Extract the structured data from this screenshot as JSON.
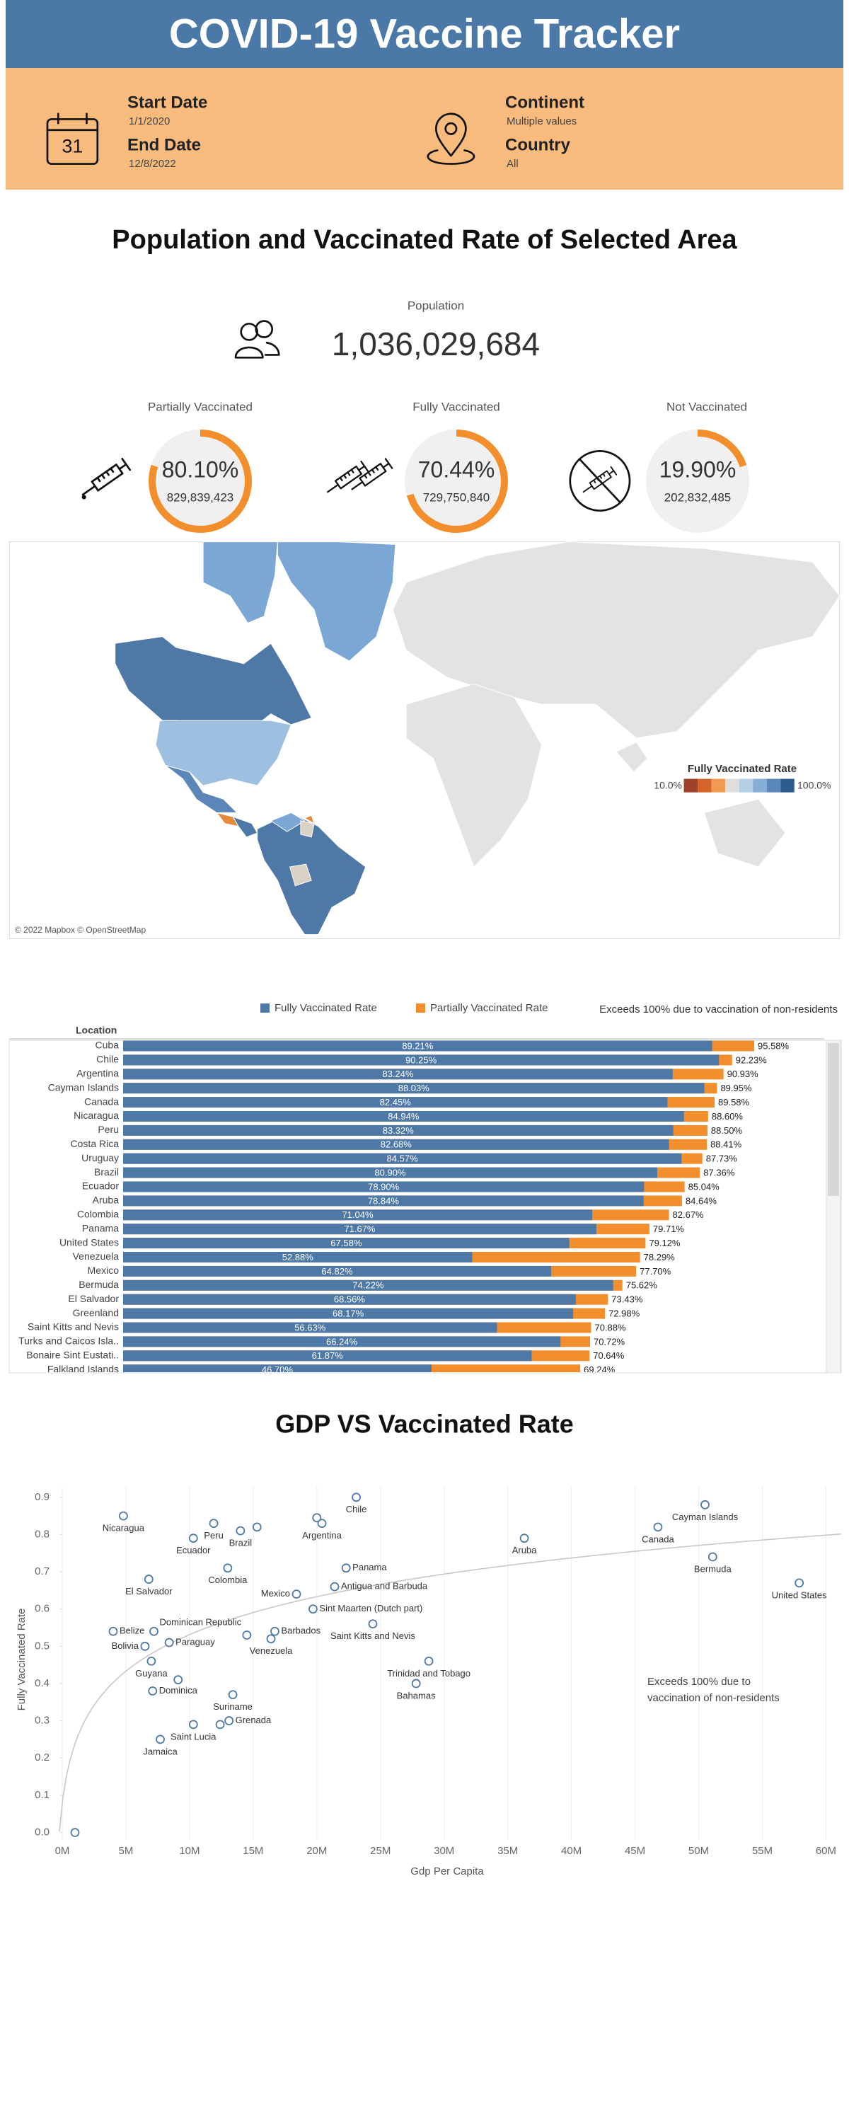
{
  "header": {
    "title": "COVID-19 Vaccine Tracker"
  },
  "filters": {
    "calendar_day": "31",
    "start_date": {
      "label": "Start Date",
      "value": "1/1/2020"
    },
    "end_date": {
      "label": "End Date",
      "value": "12/8/2022"
    },
    "continent": {
      "label": "Continent",
      "value": "Multiple values"
    },
    "country": {
      "label": "Country",
      "value": "All"
    }
  },
  "summary": {
    "title": "Population and Vaccinated Rate of Selected Area",
    "population": {
      "label": "Population",
      "value": "1,036,029,684"
    },
    "kpis": [
      {
        "label": "Partially Vaccinated",
        "value": 80.1,
        "value_label": "80.10%",
        "count": "829,839,423"
      },
      {
        "label": "Fully Vaccinated",
        "value": 70.44,
        "value_label": "70.44%",
        "count": "729,750,840"
      },
      {
        "label": "Not Vaccinated",
        "value": 19.9,
        "value_label": "19.90%",
        "count": "202,832,485"
      }
    ]
  },
  "map": {
    "legend_title": "Fully Vaccinated Rate",
    "legend_min": "10.0%",
    "legend_max": "100.0%",
    "attribution": "© 2022 Mapbox © OpenStreetMap"
  },
  "chart_data": [
    {
      "type": "bar",
      "orientation": "horizontal",
      "category_label": "Location",
      "note": "Exceeds 100% due to vaccination of non-residents",
      "categories": [
        "Cuba",
        "Chile",
        "Argentina",
        "Cayman Islands",
        "Canada",
        "Nicaragua",
        "Peru",
        "Costa Rica",
        "Uruguay",
        "Brazil",
        "Ecuador",
        "Aruba",
        "Colombia",
        "Panama",
        "United States",
        "Venezuela",
        "Mexico",
        "Bermuda",
        "El Salvador",
        "Greenland",
        "Saint Kitts and Nevis",
        "Turks and Caicos Isla..",
        "Bonaire Sint Eustati..",
        "Falkland Islands"
      ],
      "series": [
        {
          "name": "Fully Vaccinated Rate",
          "color": "#4e79a7",
          "values": [
            89.21,
            90.25,
            83.24,
            88.03,
            82.45,
            84.94,
            83.32,
            82.68,
            84.57,
            80.9,
            78.9,
            78.84,
            71.04,
            71.67,
            67.58,
            52.88,
            64.82,
            74.22,
            68.56,
            68.17,
            56.63,
            66.24,
            61.87,
            46.7
          ],
          "value_labels": [
            "89.21%",
            "90.25%",
            "83.24%",
            "88.03%",
            "82.45%",
            "84.94%",
            "83.32%",
            "82.68%",
            "84.57%",
            "80.90%",
            "78.90%",
            "78.84%",
            "71.04%",
            "71.67%",
            "67.58%",
            "52.88%",
            "64.82%",
            "74.22%",
            "68.56%",
            "68.17%",
            "56.63%",
            "66.24%",
            "61.87%",
            "46.70%"
          ]
        },
        {
          "name": "Partially Vaccinated Rate",
          "color": "#f28e2b",
          "values": [
            95.58,
            92.23,
            90.93,
            89.95,
            89.58,
            88.6,
            88.5,
            88.41,
            87.73,
            87.36,
            85.04,
            84.64,
            82.67,
            79.71,
            79.12,
            78.29,
            77.7,
            75.62,
            73.43,
            72.98,
            70.88,
            70.72,
            70.64,
            69.24
          ],
          "value_labels": [
            "95.58%",
            "92.23%",
            "90.93%",
            "89.95%",
            "89.58%",
            "88.60%",
            "88.50%",
            "88.41%",
            "87.73%",
            "87.36%",
            "85.04%",
            "84.64%",
            "82.67%",
            "79.71%",
            "79.12%",
            "78.29%",
            "77.70%",
            "75.62%",
            "73.43%",
            "72.98%",
            "70.88%",
            "70.72%",
            "70.64%",
            "69.24%"
          ]
        }
      ]
    },
    {
      "type": "scatter",
      "title": "GDP VS Vaccinated Rate",
      "x_label": "Gdp Per Capita",
      "y_label": "Fully Vaccinated Rate",
      "annotation": [
        "Exceeds 100% due to",
        "vaccination of non-residents"
      ],
      "color": "#4e79a7",
      "grid": true,
      "point_labels": [
        "Nicaragua",
        "Peru",
        "Argentina",
        null,
        "Chile",
        "Ecuador",
        "Brazil",
        null,
        "Canada",
        "Cayman Islands",
        "Aruba",
        "Bermuda",
        "United States",
        "Colombia",
        "El Salvador",
        "Panama",
        "Antigua and Barbuda",
        "Mexico",
        "Sint Maarten (Dutch part)",
        "Belize",
        "Dominican Republic",
        "Paraguay",
        "Bolivia",
        "Barbados",
        "Venezuela",
        null,
        "Saint Kitts and Nevis",
        "Guyana",
        "Dominica",
        null,
        "Suriname",
        "Trinidad and Tobago",
        "Bahamas",
        "Grenada",
        null,
        "Saint Lucia",
        "Jamaica",
        null
      ],
      "x": [
        4800000,
        11900000,
        20400000,
        20000000,
        23100000,
        10300000,
        14000000,
        15300000,
        46800000,
        50500000,
        36300000,
        51100000,
        57900000,
        13000000,
        6800000,
        22300000,
        21400000,
        18400000,
        19700000,
        4000000,
        7200000,
        8400000,
        6500000,
        16700000,
        16400000,
        14500000,
        24400000,
        7000000,
        7100000,
        9100000,
        13400000,
        28800000,
        27800000,
        13100000,
        12400000,
        10300000,
        7700000,
        1000000
      ],
      "values": [
        0.85,
        0.83,
        0.83,
        0.845,
        0.9,
        0.79,
        0.81,
        0.82,
        0.82,
        0.88,
        0.79,
        0.74,
        0.67,
        0.71,
        0.68,
        0.71,
        0.66,
        0.64,
        0.6,
        0.54,
        0.54,
        0.51,
        0.5,
        0.54,
        0.52,
        0.53,
        0.56,
        0.46,
        0.38,
        0.41,
        0.37,
        0.46,
        0.4,
        0.3,
        0.29,
        0.29,
        0.25,
        0.0
      ],
      "xlim": [
        0,
        61200000
      ],
      "ylim": [
        -0.02,
        0.93
      ],
      "xticks": [
        {
          "value": 0,
          "label": "0M"
        },
        {
          "value": 5000000,
          "label": "5M"
        },
        {
          "value": 10000000,
          "label": "10M"
        },
        {
          "value": 15000000,
          "label": "15M"
        },
        {
          "value": 20000000,
          "label": "20M"
        },
        {
          "value": 25000000,
          "label": "25M"
        },
        {
          "value": 30000000,
          "label": "30M"
        },
        {
          "value": 35000000,
          "label": "35M"
        },
        {
          "value": 40000000,
          "label": "40M"
        },
        {
          "value": 45000000,
          "label": "45M"
        },
        {
          "value": 50000000,
          "label": "50M"
        },
        {
          "value": 55000000,
          "label": "55M"
        },
        {
          "value": 60000000,
          "label": "60M"
        }
      ],
      "yticks": [
        {
          "value": 0,
          "label": "0.0"
        },
        0.1,
        0.2,
        0.3,
        0.4,
        0.5,
        0.6,
        0.7,
        0.8,
        0.9
      ]
    }
  ]
}
